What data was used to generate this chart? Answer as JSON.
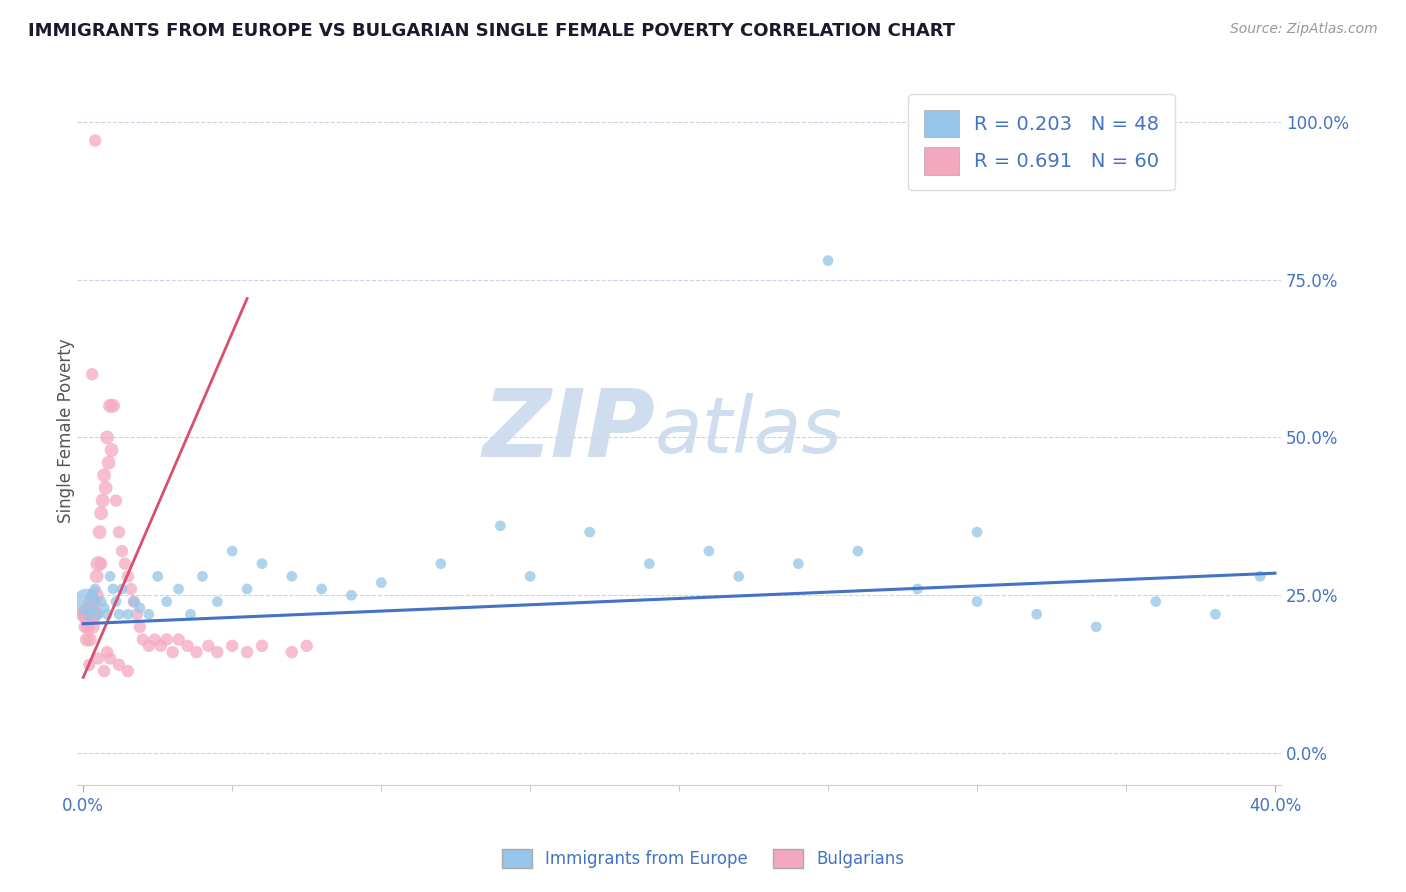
{
  "title": "IMMIGRANTS FROM EUROPE VS BULGARIAN SINGLE FEMALE POVERTY CORRELATION CHART",
  "source": "Source: ZipAtlas.com",
  "ylabel": "Single Female Poverty",
  "legend_lines": [
    {
      "label": "R = 0.203   N = 48",
      "color": "#adc8e8"
    },
    {
      "label": "R = 0.691   N = 60",
      "color": "#f4b0c8"
    }
  ],
  "watermark_zip": "ZIP",
  "watermark_atlas": "atlas",
  "right_yticks": [
    0.0,
    0.25,
    0.5,
    0.75,
    1.0
  ],
  "right_yticklabels": [
    "0.0%",
    "25.0%",
    "50.0%",
    "75.0%",
    "100.0%"
  ],
  "blue_color": "#95c5e8",
  "pink_color": "#f4a8c0",
  "blue_line_color": "#4472c4",
  "pink_line_color": "#d94f6e",
  "blue_scatter_x": [
    0.001,
    0.002,
    0.003,
    0.004,
    0.005,
    0.006,
    0.007,
    0.008,
    0.009,
    0.01,
    0.011,
    0.012,
    0.013,
    0.015,
    0.017,
    0.019,
    0.022,
    0.025,
    0.028,
    0.032,
    0.036,
    0.04,
    0.045,
    0.05,
    0.055,
    0.06,
    0.07,
    0.08,
    0.09,
    0.1,
    0.12,
    0.14,
    0.15,
    0.17,
    0.19,
    0.21,
    0.22,
    0.24,
    0.26,
    0.28,
    0.3,
    0.32,
    0.34,
    0.36,
    0.38,
    0.395,
    0.25,
    0.3
  ],
  "blue_scatter_y": [
    0.24,
    0.22,
    0.25,
    0.26,
    0.22,
    0.24,
    0.23,
    0.22,
    0.28,
    0.26,
    0.24,
    0.22,
    0.26,
    0.22,
    0.24,
    0.23,
    0.22,
    0.28,
    0.24,
    0.26,
    0.22,
    0.28,
    0.24,
    0.32,
    0.26,
    0.3,
    0.28,
    0.26,
    0.25,
    0.27,
    0.3,
    0.36,
    0.28,
    0.35,
    0.3,
    0.32,
    0.28,
    0.3,
    0.32,
    0.26,
    0.24,
    0.22,
    0.2,
    0.24,
    0.22,
    0.28,
    0.78,
    0.35
  ],
  "blue_scatter_sizes": [
    350,
    80,
    60,
    60,
    60,
    60,
    60,
    60,
    60,
    60,
    60,
    60,
    60,
    60,
    60,
    60,
    60,
    60,
    60,
    60,
    60,
    60,
    60,
    60,
    60,
    60,
    60,
    60,
    60,
    60,
    60,
    60,
    60,
    60,
    60,
    60,
    60,
    60,
    60,
    60,
    60,
    60,
    60,
    60,
    60,
    60,
    60,
    60
  ],
  "pink_scatter_x": [
    0.0002,
    0.0005,
    0.001,
    0.0012,
    0.0015,
    0.002,
    0.0022,
    0.0025,
    0.003,
    0.0032,
    0.0035,
    0.004,
    0.0042,
    0.0045,
    0.005,
    0.0055,
    0.006,
    0.0065,
    0.007,
    0.0075,
    0.008,
    0.0085,
    0.009,
    0.0095,
    0.01,
    0.011,
    0.012,
    0.013,
    0.014,
    0.015,
    0.016,
    0.017,
    0.018,
    0.019,
    0.02,
    0.022,
    0.024,
    0.026,
    0.028,
    0.03,
    0.032,
    0.035,
    0.038,
    0.042,
    0.045,
    0.05,
    0.055,
    0.06,
    0.07,
    0.075,
    0.008,
    0.004,
    0.003,
    0.006,
    0.009,
    0.002,
    0.005,
    0.007,
    0.012,
    0.015
  ],
  "pink_scatter_y": [
    0.22,
    0.2,
    0.22,
    0.18,
    0.2,
    0.22,
    0.18,
    0.22,
    0.24,
    0.2,
    0.22,
    0.25,
    0.22,
    0.28,
    0.3,
    0.35,
    0.38,
    0.4,
    0.44,
    0.42,
    0.5,
    0.46,
    0.55,
    0.48,
    0.55,
    0.4,
    0.35,
    0.32,
    0.3,
    0.28,
    0.26,
    0.24,
    0.22,
    0.2,
    0.18,
    0.17,
    0.18,
    0.17,
    0.18,
    0.16,
    0.18,
    0.17,
    0.16,
    0.17,
    0.16,
    0.17,
    0.16,
    0.17,
    0.16,
    0.17,
    0.16,
    0.97,
    0.6,
    0.3,
    0.15,
    0.14,
    0.15,
    0.13,
    0.14,
    0.13
  ],
  "pink_scatter_sizes": [
    60,
    80,
    200,
    100,
    100,
    300,
    100,
    150,
    150,
    100,
    100,
    150,
    100,
    100,
    120,
    100,
    100,
    100,
    100,
    100,
    100,
    100,
    100,
    100,
    100,
    80,
    80,
    80,
    80,
    80,
    80,
    80,
    80,
    80,
    80,
    80,
    80,
    80,
    80,
    80,
    80,
    80,
    80,
    80,
    80,
    80,
    80,
    80,
    80,
    80,
    80,
    80,
    80,
    80,
    80,
    80,
    80,
    80,
    80,
    80
  ],
  "blue_trend_x": [
    0.0,
    0.4
  ],
  "blue_trend_y": [
    0.205,
    0.285
  ],
  "pink_trend_x": [
    0.0,
    0.055
  ],
  "pink_trend_y": [
    0.12,
    0.72
  ],
  "xlim": [
    -0.002,
    0.402
  ],
  "ylim": [
    -0.05,
    1.07
  ],
  "title_color": "#1a1a2e",
  "axis_label_color": "#555555",
  "tick_color": "#4472c4",
  "grid_color": "#c8d4e8",
  "watermark_color": "#c8d8ec",
  "bg_color": "#ffffff"
}
